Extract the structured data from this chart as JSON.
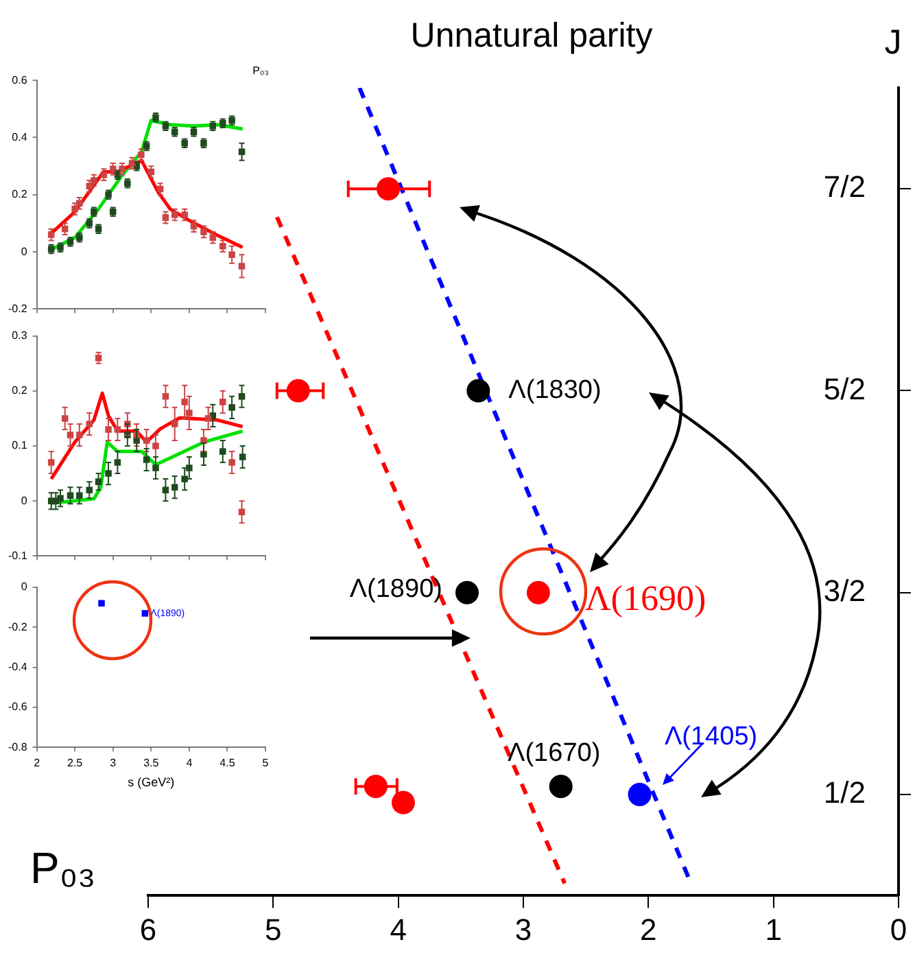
{
  "chart_data": [
    {
      "type": "scatter",
      "title": "Unnatural parity",
      "ylabel": "J",
      "xlim": [
        6,
        0
      ],
      "xticks": [
        6,
        5,
        4,
        3,
        2,
        1,
        0
      ],
      "ylim": [
        0,
        4
      ],
      "yticks": [
        {
          "value": 0.5,
          "label": "1/2"
        },
        {
          "value": 1.5,
          "label": "3/2"
        },
        {
          "value": 2.5,
          "label": "5/2"
        },
        {
          "value": 3.5,
          "label": "7/2"
        }
      ],
      "marker": "circle",
      "series": [
        {
          "type": "scatter",
          "color": "#ff0000",
          "x": [
            4.08,
            4.8,
            2.88,
            4.18,
            3.96
          ],
          "values": [
            3.5,
            2.5,
            1.5,
            0.54,
            0.46
          ],
          "xerrors": [
            [
              3.75,
              4.4
            ],
            [
              4.6,
              4.97
            ],
            null,
            [
              4.01,
              4.34
            ],
            [
              3.9,
              4.02
            ]
          ]
        },
        {
          "type": "scatter",
          "color": "#000000",
          "x": [
            3.36,
            3.45,
            2.7
          ],
          "values": [
            2.5,
            1.5,
            0.54
          ]
        },
        {
          "type": "scatter",
          "color": "#0000ff",
          "x": [
            2.07
          ],
          "values": [
            0.5
          ]
        },
        {
          "type": "line",
          "color": "#ff0000",
          "line_style": "dashed",
          "marker": "none",
          "x": [
            4.97,
            2.67
          ],
          "values": [
            3.36,
            0.06
          ]
        },
        {
          "type": "line",
          "color": "#0000ff",
          "line_style": "dashed",
          "marker": "none",
          "x": [
            4.31,
            1.66
          ],
          "values": [
            4.0,
            0.06
          ]
        }
      ],
      "annotations": [
        {
          "text": "Λ(1830)",
          "x": 3.36,
          "y": 2.5
        },
        {
          "text": "Λ(1890)",
          "x": 3.45,
          "y": 1.5
        },
        {
          "text": "Λ(1690)",
          "x": 2.88,
          "y": 1.5
        },
        {
          "text": "Λ(1670)",
          "x": 2.7,
          "y": 0.54
        },
        {
          "text": "Λ(1405)",
          "x": 2.07,
          "y": 0.5
        },
        "P₀₃"
      ]
    },
    {
      "type": "scatter",
      "title": "P₀₃",
      "xlim": [
        2,
        5
      ],
      "xticks": [
        2,
        2.5,
        3,
        3.5,
        4,
        4.5,
        5
      ],
      "ylim": [
        -0.2,
        0.6
      ],
      "yticks": [
        -0.2,
        0,
        0.2,
        0.4,
        0.6
      ],
      "tick_labels": "y",
      "marker": "square",
      "series": [
        {
          "type": "scatter",
          "color": "#cc4444",
          "x": [
            2.19,
            2.37,
            2.5,
            2.56,
            2.69,
            2.75,
            2.88,
            3.0,
            3.12,
            3.25,
            3.37,
            3.5,
            3.62,
            3.69,
            3.81,
            3.94,
            4.06,
            4.19,
            4.31,
            4.44,
            4.56,
            4.69
          ],
          "values": [
            0.06,
            0.08,
            0.15,
            0.17,
            0.23,
            0.25,
            0.27,
            0.29,
            0.29,
            0.31,
            0.34,
            0.28,
            0.22,
            0.12,
            0.13,
            0.13,
            0.09,
            0.07,
            0.05,
            0.02,
            -0.01,
            -0.05
          ],
          "errors": [
            0.02,
            0.02,
            0.02,
            0.02,
            0.02,
            0.02,
            0.02,
            0.02,
            0.02,
            0.02,
            0.02,
            0.02,
            0.02,
            0.02,
            0.02,
            0.02,
            0.02,
            0.02,
            0.02,
            0.02,
            0.03,
            0.04
          ]
        },
        {
          "type": "scatter",
          "color": "#1f4a1f",
          "x": [
            2.19,
            2.31,
            2.44,
            2.56,
            2.69,
            2.75,
            2.81,
            2.94,
            3.0,
            3.06,
            3.19,
            3.31,
            3.44,
            3.56,
            3.69,
            3.81,
            3.94,
            4.06,
            4.19,
            4.31,
            4.44,
            4.56,
            4.69
          ],
          "values": [
            0.01,
            0.015,
            0.035,
            0.05,
            0.1,
            0.14,
            0.08,
            0.2,
            0.14,
            0.27,
            0.24,
            0.3,
            0.37,
            0.47,
            0.44,
            0.42,
            0.38,
            0.42,
            0.38,
            0.44,
            0.45,
            0.46,
            0.35
          ],
          "errors": [
            0.015,
            0.015,
            0.015,
            0.015,
            0.015,
            0.015,
            0.015,
            0.015,
            0.015,
            0.015,
            0.015,
            0.015,
            0.015,
            0.015,
            0.015,
            0.015,
            0.015,
            0.015,
            0.015,
            0.015,
            0.015,
            0.015,
            0.03
          ]
        },
        {
          "type": "line",
          "color": "#ff0000",
          "marker": "none",
          "x": [
            2.19,
            2.5,
            2.875,
            3.06,
            3.375,
            3.59,
            3.75,
            4.0,
            4.375,
            4.7
          ],
          "values": [
            0.065,
            0.14,
            0.28,
            0.28,
            0.32,
            0.21,
            0.15,
            0.11,
            0.057,
            0.016
          ]
        },
        {
          "type": "line",
          "color": "#00e000",
          "marker": "none",
          "x": [
            2.19,
            2.5,
            2.81,
            3.125,
            3.375,
            3.5,
            3.75,
            4.06,
            4.375,
            4.7
          ],
          "values": [
            0.008,
            0.05,
            0.15,
            0.27,
            0.35,
            0.46,
            0.445,
            0.44,
            0.445,
            0.43
          ]
        }
      ]
    },
    {
      "type": "scatter",
      "xlim": [
        2,
        5
      ],
      "xticks": [
        2,
        2.5,
        3,
        3.5,
        4,
        4.5,
        5
      ],
      "ylim": [
        -0.1,
        0.3
      ],
      "yticks": [
        -0.1,
        0,
        0.1,
        0.2,
        0.3
      ],
      "tick_labels": "y",
      "marker": "square",
      "series": [
        {
          "type": "scatter",
          "color": "#cc4444",
          "x": [
            2.19,
            2.37,
            2.44,
            2.56,
            2.69,
            2.81,
            2.94,
            3.06,
            3.19,
            3.31,
            3.44,
            3.56,
            3.69,
            3.81,
            3.94,
            4.0,
            4.19,
            4.25,
            4.44,
            4.56,
            4.69
          ],
          "values": [
            0.07,
            0.15,
            0.12,
            0.12,
            0.14,
            0.26,
            0.13,
            0.13,
            0.14,
            0.12,
            0.11,
            0.1,
            0.19,
            0.14,
            0.18,
            0.16,
            0.11,
            0.15,
            0.18,
            0.07,
            -0.02
          ],
          "errors": [
            0.02,
            0.02,
            0.02,
            0.02,
            0.02,
            0.01,
            0.02,
            0.02,
            0.02,
            0.02,
            0.02,
            0.02,
            0.02,
            0.03,
            0.03,
            0.03,
            0.02,
            0.02,
            0.02,
            0.02,
            0.02
          ]
        },
        {
          "type": "scatter",
          "color": "#1f4a1f",
          "x": [
            2.19,
            2.25,
            2.31,
            2.44,
            2.56,
            2.69,
            2.81,
            2.94,
            3.06,
            3.19,
            3.31,
            3.44,
            3.56,
            3.69,
            3.81,
            3.94,
            4.0,
            4.19,
            4.31,
            4.44,
            4.56,
            4.69,
            4.7
          ],
          "values": [
            0.0,
            0.0,
            0.005,
            0.01,
            0.01,
            0.02,
            0.035,
            0.05,
            0.07,
            0.12,
            0.11,
            0.075,
            0.06,
            0.02,
            0.025,
            0.04,
            0.06,
            0.085,
            0.155,
            0.09,
            0.17,
            0.19,
            0.08
          ],
          "errors": [
            0.015,
            0.015,
            0.015,
            0.015,
            0.015,
            0.015,
            0.015,
            0.02,
            0.02,
            0.02,
            0.02,
            0.02,
            0.02,
            0.02,
            0.02,
            0.02,
            0.02,
            0.02,
            0.02,
            0.02,
            0.02,
            0.02,
            0.02
          ]
        },
        {
          "type": "line",
          "color": "#ff0000",
          "marker": "none",
          "x": [
            2.19,
            2.5,
            2.75,
            2.86,
            2.94,
            3.06,
            3.31,
            3.44,
            3.62,
            3.875,
            4.375,
            4.7
          ],
          "values": [
            0.04,
            0.107,
            0.147,
            0.196,
            0.155,
            0.127,
            0.127,
            0.107,
            0.131,
            0.151,
            0.147,
            0.135
          ]
        },
        {
          "type": "line",
          "color": "#00e000",
          "marker": "none",
          "x": [
            2.19,
            2.75,
            2.84,
            2.925,
            3.06,
            3.375,
            3.56,
            3.81,
            4.19,
            4.7
          ],
          "values": [
            -0.004,
            0.004,
            0.025,
            0.107,
            0.09,
            0.09,
            0.066,
            0.082,
            0.107,
            0.127
          ]
        }
      ]
    },
    {
      "type": "scatter",
      "xlabel": "s (GeV²)",
      "xlim": [
        2,
        5
      ],
      "xticks": [
        2,
        2.5,
        3,
        3.5,
        4,
        4.5,
        5
      ],
      "ylim": [
        -0.8,
        0
      ],
      "yticks": [
        -0.8,
        -0.6,
        -0.4,
        -0.2,
        0
      ],
      "marker": "square",
      "series": [
        {
          "type": "scatter",
          "color": "#0000ff",
          "x": [
            2.85,
            3.42
          ],
          "values": [
            -0.08,
            -0.13
          ]
        }
      ],
      "annotations": [
        {
          "text": "Λ(1890)",
          "x": 3.42,
          "y": -0.13
        }
      ]
    }
  ]
}
